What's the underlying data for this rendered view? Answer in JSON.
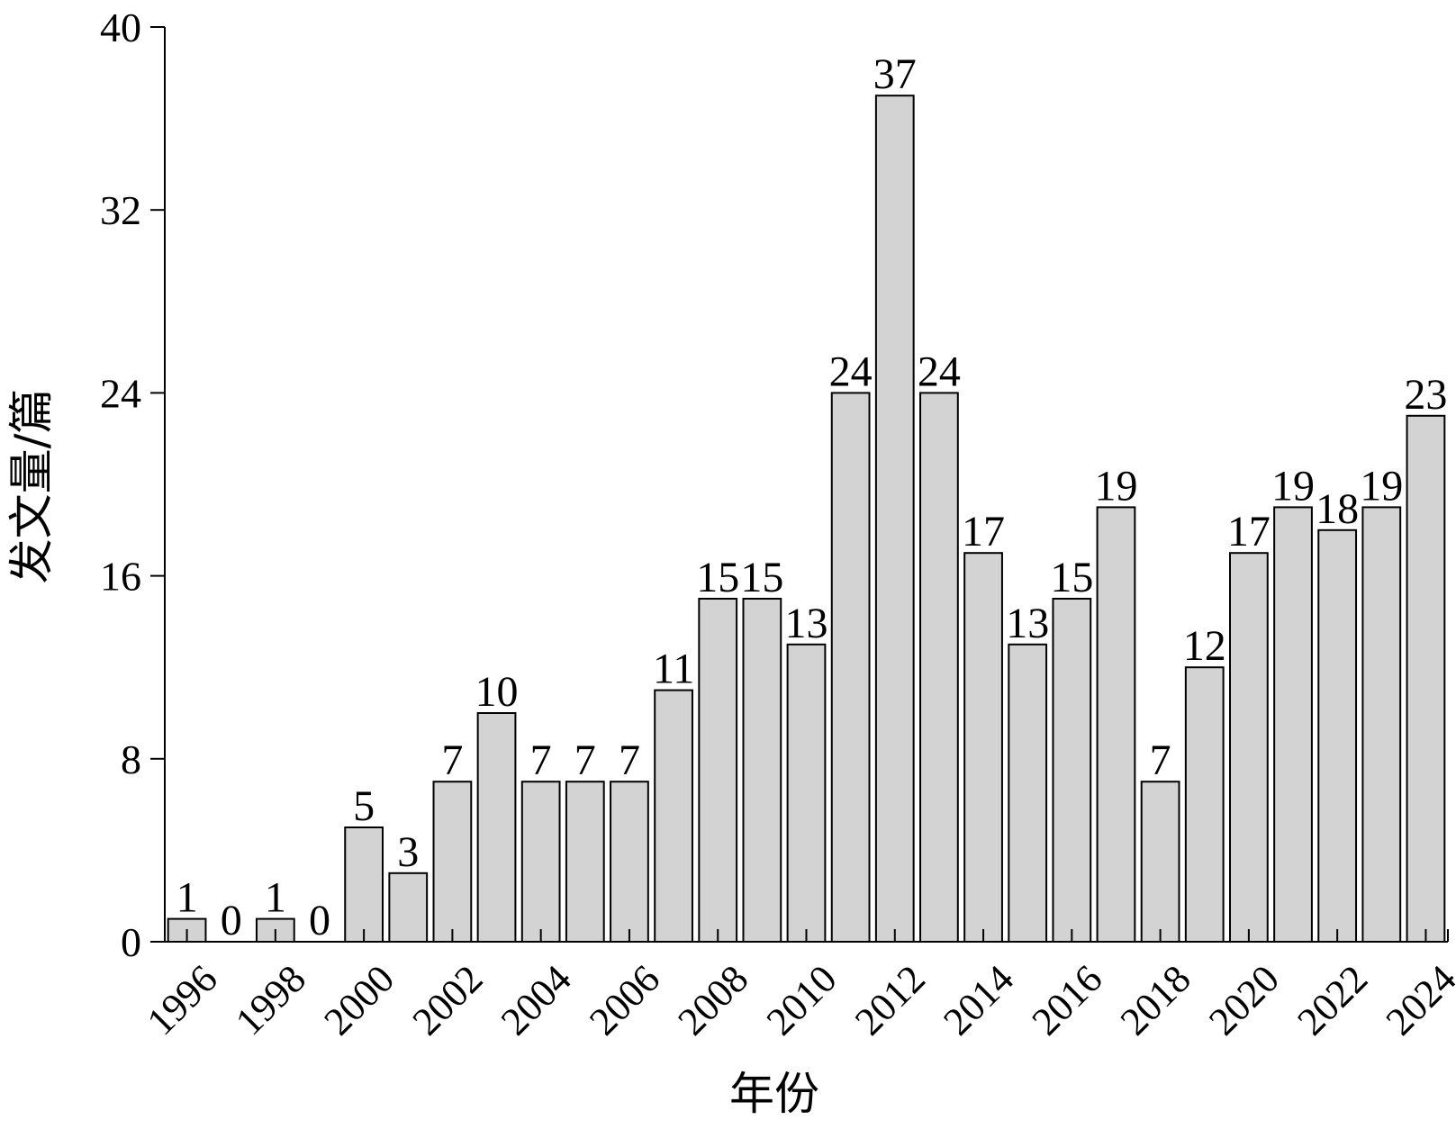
{
  "chart_data": {
    "type": "bar",
    "categories": [
      "1996",
      "1997",
      "1998",
      "1999",
      "2000",
      "2001",
      "2002",
      "2003",
      "2004",
      "2005",
      "2006",
      "2007",
      "2008",
      "2009",
      "2010",
      "2011",
      "2012",
      "2013",
      "2014",
      "2015",
      "2016",
      "2017",
      "2018",
      "2019",
      "2020",
      "2021",
      "2022",
      "2023",
      "2024"
    ],
    "values": [
      1,
      0,
      1,
      0,
      5,
      3,
      7,
      10,
      7,
      7,
      7,
      11,
      15,
      15,
      13,
      24,
      37,
      24,
      17,
      13,
      15,
      19,
      7,
      12,
      17,
      19,
      18,
      19,
      23
    ],
    "x_tick_labels": [
      "1996",
      "1998",
      "2000",
      "2002",
      "2004",
      "2006",
      "2008",
      "2010",
      "2012",
      "2014",
      "2016",
      "2018",
      "2020",
      "2022",
      "2024"
    ],
    "title": "",
    "xlabel": "年份",
    "ylabel": "发文量/篇",
    "ylim": [
      0,
      40
    ],
    "yticks": [
      0,
      8,
      16,
      24,
      32,
      40
    ],
    "grid": false,
    "bar_color": "#d3d3d3",
    "bar_edge_color": "#000000",
    "show_data_labels": true
  }
}
